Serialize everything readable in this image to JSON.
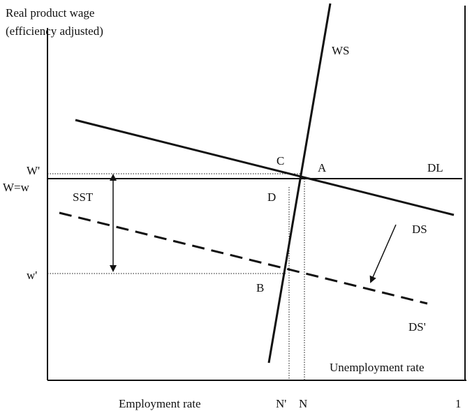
{
  "axes": {
    "y_label": [
      "Real product wage",
      "(efficiency adjusted)"
    ],
    "x_label": "Employment rate",
    "right_label": "Unemployment rate",
    "x_end": "1"
  },
  "curves": {
    "ws": "WS",
    "dl": "DL",
    "ds": "DS",
    "ds_prime": "DS'",
    "sst": "SST"
  },
  "points": {
    "a": "A",
    "b": "B",
    "c": "C",
    "d": "D"
  },
  "levels": {
    "w_prime_upper": "W'",
    "w_equal": "W=w",
    "w_prime_lower": "w'",
    "n_prime": "N'",
    "n": "N"
  }
}
